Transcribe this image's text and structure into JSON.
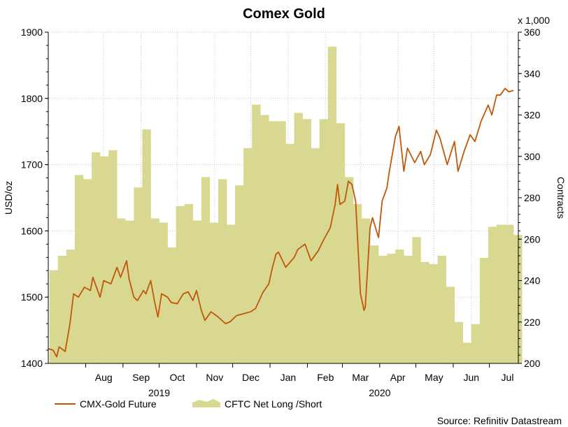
{
  "chart_data": {
    "type": "bar+line",
    "title": "Comex Gold",
    "y_left_label": "USD/oz",
    "y_right_label": "Contracts",
    "y_right_multiplier": "x 1,000",
    "y_left_range": [
      1400,
      1900
    ],
    "y_left_ticks": [
      "1400",
      "1500",
      "1600",
      "1700",
      "1800",
      "1900"
    ],
    "y_right_range": [
      200,
      360
    ],
    "y_right_ticks": [
      "200",
      "220",
      "240",
      "260",
      "280",
      "300",
      "320",
      "340",
      "360"
    ],
    "x_range": [
      "2019-07-01",
      "2020-07-25"
    ],
    "month_labels": [
      "Aug",
      "Sep",
      "Oct",
      "Nov",
      "Dec",
      "Jan",
      "Feb",
      "Mar",
      "Apr",
      "May",
      "Jun",
      "Jul"
    ],
    "year_labels": [
      "2019",
      "2020"
    ],
    "grid": true,
    "source": "Source: Refinitiv Datastream",
    "series": [
      {
        "name": "CMX-Gold Future",
        "kind": "line",
        "axis": "left",
        "color": "#c0570a",
        "x": [
          "2019-07-01",
          "2019-07-05",
          "2019-07-08",
          "2019-07-10",
          "2019-07-15",
          "2019-07-19",
          "2019-07-22",
          "2019-07-26",
          "2019-07-31",
          "2019-08-05",
          "2019-08-07",
          "2019-08-13",
          "2019-08-16",
          "2019-08-22",
          "2019-08-27",
          "2019-08-30",
          "2019-09-04",
          "2019-09-06",
          "2019-09-10",
          "2019-09-13",
          "2019-09-18",
          "2019-09-20",
          "2019-09-24",
          "2019-09-27",
          "2019-09-30",
          "2019-10-03",
          "2019-10-08",
          "2019-10-11",
          "2019-10-16",
          "2019-10-21",
          "2019-10-25",
          "2019-10-29",
          "2019-11-01",
          "2019-11-05",
          "2019-11-08",
          "2019-11-13",
          "2019-11-19",
          "2019-11-25",
          "2019-11-29",
          "2019-12-04",
          "2019-12-10",
          "2019-12-16",
          "2019-12-20",
          "2019-12-26",
          "2019-12-31",
          "2020-01-03",
          "2020-01-06",
          "2020-01-08",
          "2020-01-14",
          "2020-01-21",
          "2020-01-24",
          "2020-01-30",
          "2020-02-04",
          "2020-02-10",
          "2020-02-14",
          "2020-02-20",
          "2020-02-24",
          "2020-02-26",
          "2020-02-28",
          "2020-03-03",
          "2020-03-06",
          "2020-03-09",
          "2020-03-12",
          "2020-03-16",
          "2020-03-19",
          "2020-03-20",
          "2020-03-24",
          "2020-03-26",
          "2020-03-31",
          "2020-04-03",
          "2020-04-07",
          "2020-04-09",
          "2020-04-14",
          "2020-04-17",
          "2020-04-21",
          "2020-04-24",
          "2020-04-30",
          "2020-05-05",
          "2020-05-08",
          "2020-05-13",
          "2020-05-18",
          "2020-05-21",
          "2020-05-27",
          "2020-06-02",
          "2020-06-05",
          "2020-06-10",
          "2020-06-15",
          "2020-06-19",
          "2020-06-24",
          "2020-06-30",
          "2020-07-03",
          "2020-07-07",
          "2020-07-10",
          "2020-07-14",
          "2020-07-17",
          "2020-07-21"
        ],
        "values": [
          1422,
          1420,
          1410,
          1425,
          1418,
          1460,
          1505,
          1500,
          1515,
          1510,
          1530,
          1500,
          1525,
          1520,
          1545,
          1530,
          1555,
          1528,
          1500,
          1495,
          1510,
          1505,
          1525,
          1495,
          1470,
          1505,
          1500,
          1492,
          1490,
          1505,
          1508,
          1495,
          1510,
          1480,
          1465,
          1478,
          1470,
          1460,
          1463,
          1472,
          1475,
          1478,
          1483,
          1507,
          1520,
          1545,
          1565,
          1568,
          1545,
          1560,
          1572,
          1580,
          1555,
          1570,
          1585,
          1605,
          1640,
          1670,
          1640,
          1645,
          1675,
          1670,
          1645,
          1505,
          1480,
          1485,
          1605,
          1620,
          1590,
          1645,
          1665,
          1690,
          1742,
          1758,
          1690,
          1725,
          1703,
          1720,
          1700,
          1715,
          1752,
          1740,
          1700,
          1735,
          1690,
          1720,
          1745,
          1735,
          1765,
          1790,
          1775,
          1805,
          1805,
          1815,
          1810,
          1812
        ]
      },
      {
        "name": "CFTC Net Long /Short",
        "kind": "bar",
        "axis": "right",
        "color": "#d8d890",
        "x": [
          "2019-07-02",
          "2019-07-09",
          "2019-07-16",
          "2019-07-23",
          "2019-07-30",
          "2019-08-06",
          "2019-08-13",
          "2019-08-20",
          "2019-08-27",
          "2019-09-03",
          "2019-09-10",
          "2019-09-17",
          "2019-09-24",
          "2019-10-01",
          "2019-10-08",
          "2019-10-15",
          "2019-10-22",
          "2019-10-29",
          "2019-11-05",
          "2019-11-12",
          "2019-11-19",
          "2019-11-26",
          "2019-12-03",
          "2019-12-10",
          "2019-12-17",
          "2019-12-24",
          "2019-12-31",
          "2020-01-07",
          "2020-01-14",
          "2020-01-21",
          "2020-01-28",
          "2020-02-04",
          "2020-02-11",
          "2020-02-18",
          "2020-02-25",
          "2020-03-03",
          "2020-03-10",
          "2020-03-17",
          "2020-03-24",
          "2020-03-31",
          "2020-04-07",
          "2020-04-14",
          "2020-04-21",
          "2020-04-28",
          "2020-05-05",
          "2020-05-12",
          "2020-05-19",
          "2020-05-26",
          "2020-06-02",
          "2020-06-09",
          "2020-06-16",
          "2020-06-23",
          "2020-06-30",
          "2020-07-07",
          "2020-07-14",
          "2020-07-21"
        ],
        "values": [
          245,
          252,
          255,
          291,
          289,
          302,
          300,
          303,
          270,
          269,
          285,
          313,
          270,
          268,
          256,
          276,
          277,
          269,
          290,
          268,
          289,
          267,
          286,
          304,
          325,
          320,
          317,
          317,
          306,
          321,
          318,
          304,
          318,
          353,
          316,
          290,
          277,
          270,
          257,
          252,
          253,
          255,
          252,
          261,
          249,
          248,
          252,
          237,
          220,
          210,
          219,
          251,
          266,
          267,
          267,
          262
        ]
      }
    ]
  }
}
